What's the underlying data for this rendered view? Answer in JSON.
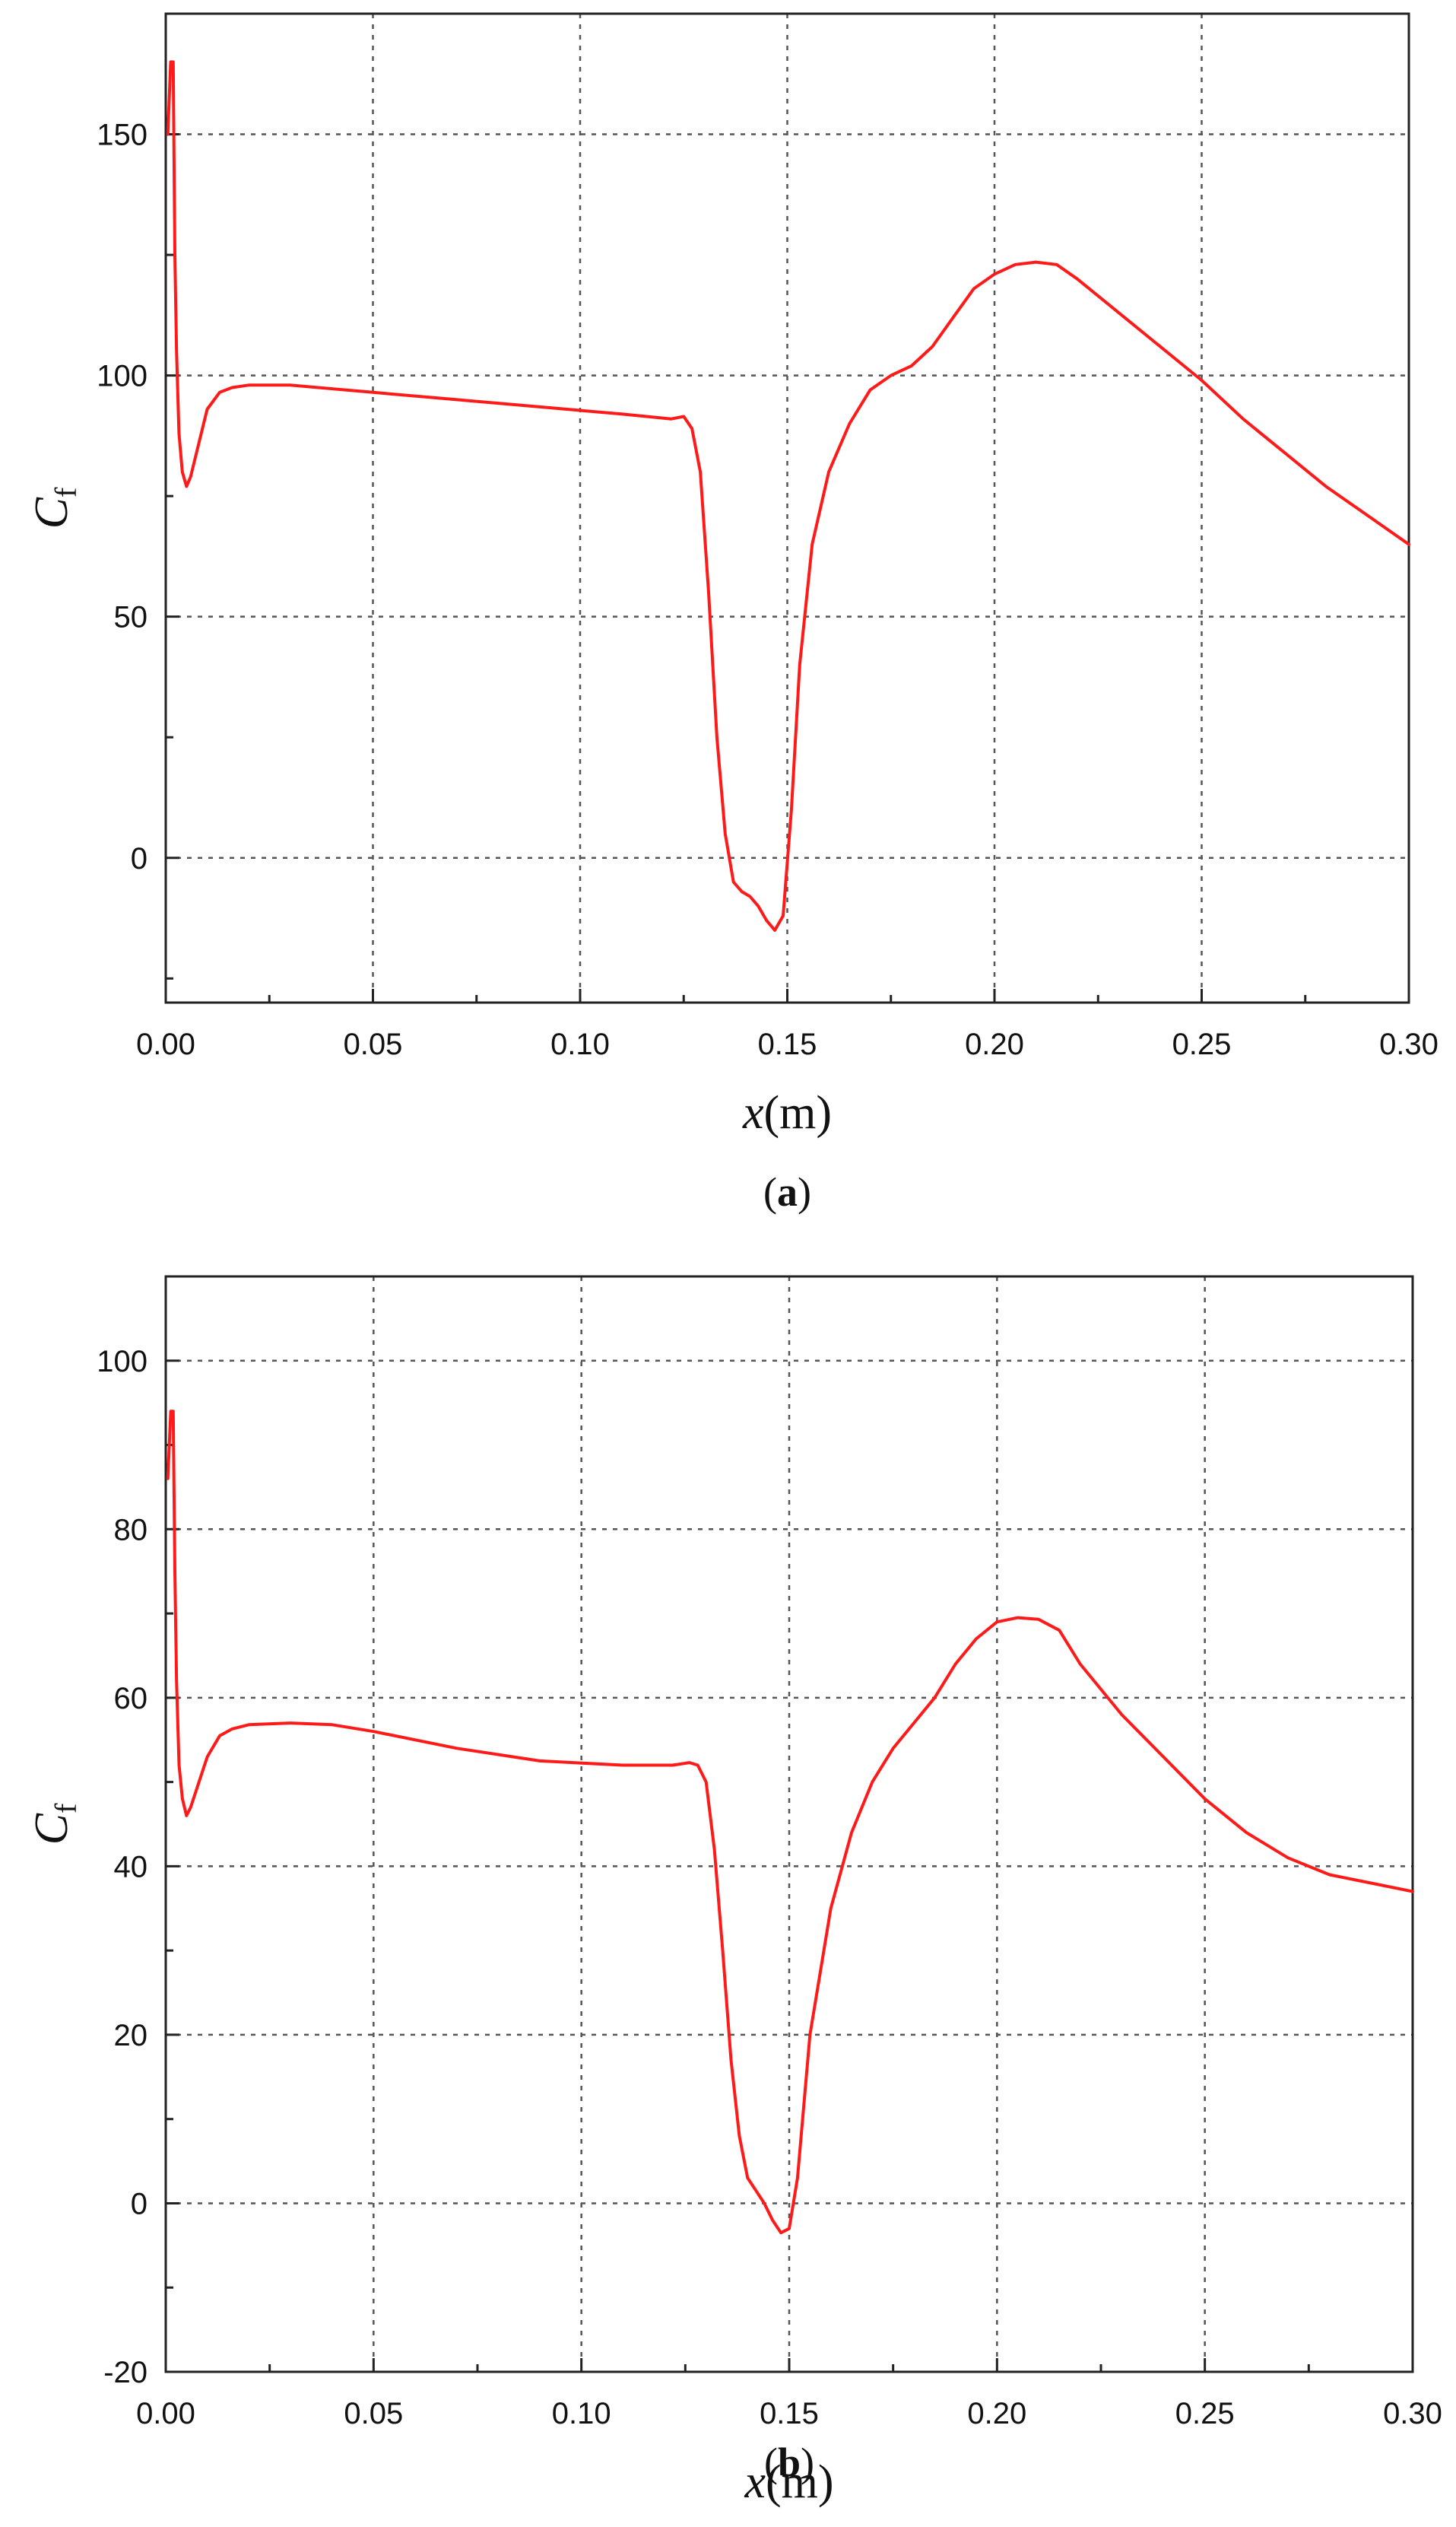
{
  "figure": {
    "panels": [
      {
        "label_open": "(",
        "label_letter": "a",
        "label_close": ")"
      },
      {
        "label_open": "(",
        "label_letter": "b",
        "label_close": ")"
      }
    ]
  },
  "chart_data": [
    {
      "type": "line",
      "panel": "a",
      "xlabel_var": "x",
      "xlabel_unit": "(m)",
      "ylabel_main": "C",
      "ylabel_sub": "f",
      "xlim": [
        0,
        0.3
      ],
      "ylim": [
        -30,
        175
      ],
      "xticks": [
        0,
        0.05,
        0.1,
        0.15,
        0.2,
        0.25,
        0.3
      ],
      "xtick_labels": [
        "0.00",
        "0.05",
        "0.10",
        "0.15",
        "0.20",
        "0.25",
        "0.30"
      ],
      "yticks": [
        0,
        50,
        100,
        150
      ],
      "ytick_labels": [
        "0",
        "50",
        "100",
        "150"
      ],
      "grid": true,
      "line_color": "#ff1a1a",
      "series": [
        {
          "x": [
            0.0005,
            0.0012,
            0.0018,
            0.0022,
            0.0026,
            0.0032,
            0.004,
            0.005,
            0.006,
            0.008,
            0.01,
            0.013,
            0.016,
            0.02,
            0.03,
            0.05,
            0.07,
            0.09,
            0.11,
            0.122,
            0.125,
            0.127,
            0.129,
            0.131,
            0.133,
            0.135,
            0.137,
            0.139,
            0.141,
            0.143,
            0.145,
            0.147,
            0.149,
            0.151,
            0.153,
            0.156,
            0.16,
            0.165,
            0.17,
            0.175,
            0.18,
            0.185,
            0.19,
            0.195,
            0.2,
            0.205,
            0.21,
            0.215,
            0.22,
            0.23,
            0.24,
            0.25,
            0.26,
            0.27,
            0.28,
            0.29,
            0.3
          ],
          "y": [
            150,
            165,
            165,
            125,
            105,
            88,
            80,
            77,
            79,
            86,
            93,
            96.5,
            97.5,
            98,
            98,
            96.5,
            95,
            93.5,
            92,
            91,
            91.5,
            89,
            80,
            55,
            25,
            5,
            -5,
            -7,
            -8,
            -10,
            -13,
            -15,
            -12,
            10,
            40,
            65,
            80,
            90,
            97,
            100,
            102,
            106,
            112,
            118,
            121,
            123,
            123.5,
            123,
            120,
            113,
            106,
            99,
            91,
            84,
            77,
            71,
            65
          ]
        }
      ]
    },
    {
      "type": "line",
      "panel": "b",
      "xlabel_var": "x",
      "xlabel_unit": "(m)",
      "ylabel_main": "C",
      "ylabel_sub": "f",
      "xlim": [
        0,
        0.3
      ],
      "ylim": [
        -20,
        110
      ],
      "xticks": [
        0,
        0.05,
        0.1,
        0.15,
        0.2,
        0.25,
        0.3
      ],
      "xtick_labels": [
        "0.00",
        "0.05",
        "0.10",
        "0.15",
        "0.20",
        "0.25",
        "0.30"
      ],
      "yticks": [
        -20,
        0,
        20,
        40,
        60,
        80,
        100
      ],
      "ytick_labels": [
        "-20",
        "0",
        "20",
        "40",
        "60",
        "80",
        "100"
      ],
      "grid": true,
      "line_color": "#ff1a1a",
      "series": [
        {
          "x": [
            0.0005,
            0.0012,
            0.0018,
            0.0022,
            0.0026,
            0.0032,
            0.004,
            0.005,
            0.006,
            0.008,
            0.01,
            0.013,
            0.016,
            0.02,
            0.03,
            0.04,
            0.05,
            0.07,
            0.09,
            0.11,
            0.122,
            0.126,
            0.128,
            0.13,
            0.132,
            0.134,
            0.136,
            0.138,
            0.14,
            0.142,
            0.144,
            0.146,
            0.148,
            0.15,
            0.152,
            0.155,
            0.16,
            0.165,
            0.17,
            0.175,
            0.18,
            0.185,
            0.19,
            0.195,
            0.2,
            0.205,
            0.21,
            0.215,
            0.22,
            0.23,
            0.24,
            0.25,
            0.26,
            0.27,
            0.28,
            0.29,
            0.3
          ],
          "y": [
            86,
            94,
            94,
            75,
            62,
            52,
            48,
            46,
            47,
            50,
            53,
            55.5,
            56.3,
            56.8,
            57,
            56.8,
            56,
            54,
            52.5,
            52,
            52,
            52.3,
            52,
            50,
            42,
            30,
            17,
            8,
            3,
            1.5,
            0,
            -2,
            -3.5,
            -3,
            3,
            20,
            35,
            44,
            50,
            54,
            57,
            60,
            64,
            67,
            69,
            69.5,
            69.3,
            68,
            64,
            58,
            53,
            48,
            44,
            41,
            39,
            38,
            37
          ]
        }
      ]
    }
  ]
}
